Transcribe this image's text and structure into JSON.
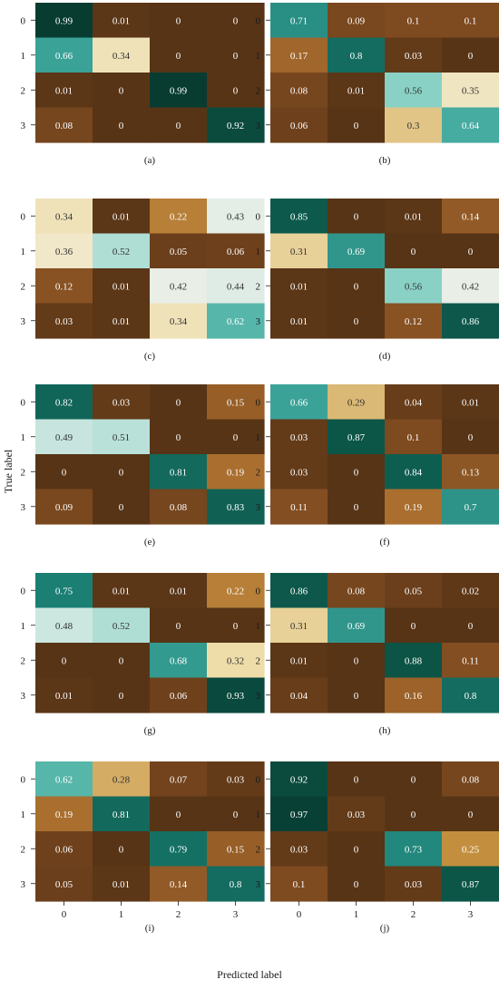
{
  "figure": {
    "ylabel": "True label",
    "xlabel": "Predicted label",
    "row_tick_labels": [
      "0",
      "1",
      "2",
      "3"
    ],
    "col_tick_labels": [
      "0",
      "1",
      "2",
      "3"
    ]
  },
  "colorscale": {
    "stops": [
      {
        "t": 0.0,
        "color": "#573416"
      },
      {
        "t": 0.1,
        "color": "#7e4a20"
      },
      {
        "t": 0.18,
        "color": "#a66a2c"
      },
      {
        "t": 0.26,
        "color": "#c79442"
      },
      {
        "t": 0.32,
        "color": "#eedda9"
      },
      {
        "t": 0.4,
        "color": "#f3f1ea"
      },
      {
        "t": 0.5,
        "color": "#c2e4dd"
      },
      {
        "t": 0.58,
        "color": "#78cbbd"
      },
      {
        "t": 0.65,
        "color": "#3ea69b"
      },
      {
        "t": 0.75,
        "color": "#1b7f74"
      },
      {
        "t": 0.85,
        "color": "#0d5a4c"
      },
      {
        "t": 1.0,
        "color": "#083a2f"
      }
    ]
  },
  "chart_data": [
    {
      "type": "heatmap",
      "label": "(a)",
      "rows": [
        "0",
        "1",
        "2",
        "3"
      ],
      "cols": [
        "0",
        "1",
        "2",
        "3"
      ],
      "values": [
        [
          0.99,
          0.01,
          0,
          0
        ],
        [
          0.66,
          0.34,
          0,
          0
        ],
        [
          0.01,
          0,
          0.99,
          0
        ],
        [
          0.08,
          0,
          0,
          0.92
        ]
      ]
    },
    {
      "type": "heatmap",
      "label": "(b)",
      "rows": [
        "0",
        "1",
        "2",
        "3"
      ],
      "cols": [
        "0",
        "1",
        "2",
        "3"
      ],
      "values": [
        [
          0.71,
          0.09,
          0.1,
          0.1
        ],
        [
          0.17,
          0.8,
          0.03,
          0
        ],
        [
          0.08,
          0.01,
          0.56,
          0.35
        ],
        [
          0.06,
          0,
          0.3,
          0.64
        ]
      ]
    },
    {
      "type": "heatmap",
      "label": "(c)",
      "rows": [
        "0",
        "1",
        "2",
        "3"
      ],
      "cols": [
        "0",
        "1",
        "2",
        "3"
      ],
      "values": [
        [
          0.34,
          0.01,
          0.22,
          0.43
        ],
        [
          0.36,
          0.52,
          0.05,
          0.06
        ],
        [
          0.12,
          0.01,
          0.42,
          0.44
        ],
        [
          0.03,
          0.01,
          0.34,
          0.62
        ]
      ]
    },
    {
      "type": "heatmap",
      "label": "(d)",
      "rows": [
        "0",
        "1",
        "2",
        "3"
      ],
      "cols": [
        "0",
        "1",
        "2",
        "3"
      ],
      "values": [
        [
          0.85,
          0,
          0.01,
          0.14
        ],
        [
          0.31,
          0.69,
          0,
          0
        ],
        [
          0.01,
          0,
          0.56,
          0.42
        ],
        [
          0.01,
          0,
          0.12,
          0.86
        ]
      ]
    },
    {
      "type": "heatmap",
      "label": "(e)",
      "rows": [
        "0",
        "1",
        "2",
        "3"
      ],
      "cols": [
        "0",
        "1",
        "2",
        "3"
      ],
      "values": [
        [
          0.82,
          0.03,
          0,
          0.15
        ],
        [
          0.49,
          0.51,
          0,
          0
        ],
        [
          0,
          0,
          0.81,
          0.19
        ],
        [
          0.09,
          0,
          0.08,
          0.83
        ]
      ]
    },
    {
      "type": "heatmap",
      "label": "(f)",
      "rows": [
        "0",
        "1",
        "2",
        "3"
      ],
      "cols": [
        "0",
        "1",
        "2",
        "3"
      ],
      "values": [
        [
          0.66,
          0.29,
          0.04,
          0.01
        ],
        [
          0.03,
          0.87,
          0.1,
          0
        ],
        [
          0.03,
          0,
          0.84,
          0.13
        ],
        [
          0.11,
          0,
          0.19,
          0.7
        ]
      ]
    },
    {
      "type": "heatmap",
      "label": "(g)",
      "rows": [
        "0",
        "1",
        "2",
        "3"
      ],
      "cols": [
        "0",
        "1",
        "2",
        "3"
      ],
      "values": [
        [
          0.75,
          0.01,
          0.01,
          0.22
        ],
        [
          0.48,
          0.52,
          0,
          0
        ],
        [
          0,
          0,
          0.68,
          0.32
        ],
        [
          0.01,
          0,
          0.06,
          0.93
        ]
      ]
    },
    {
      "type": "heatmap",
      "label": "(h)",
      "rows": [
        "0",
        "1",
        "2",
        "3"
      ],
      "cols": [
        "0",
        "1",
        "2",
        "3"
      ],
      "values": [
        [
          0.86,
          0.08,
          0.05,
          0.02
        ],
        [
          0.31,
          0.69,
          0,
          0
        ],
        [
          0.01,
          0,
          0.88,
          0.11
        ],
        [
          0.04,
          0,
          0.16,
          0.8
        ]
      ]
    },
    {
      "type": "heatmap",
      "label": "(i)",
      "rows": [
        "0",
        "1",
        "2",
        "3"
      ],
      "cols": [
        "0",
        "1",
        "2",
        "3"
      ],
      "values": [
        [
          0.62,
          0.28,
          0.07,
          0.03
        ],
        [
          0.19,
          0.81,
          0,
          0
        ],
        [
          0.06,
          0,
          0.79,
          0.15
        ],
        [
          0.05,
          0.01,
          0.14,
          0.8
        ]
      ]
    },
    {
      "type": "heatmap",
      "label": "(j)",
      "rows": [
        "0",
        "1",
        "2",
        "3"
      ],
      "cols": [
        "0",
        "1",
        "2",
        "3"
      ],
      "values": [
        [
          0.92,
          0,
          0,
          0.08
        ],
        [
          0.97,
          0.03,
          0,
          0
        ],
        [
          0.03,
          0,
          0.73,
          0.25
        ],
        [
          0.1,
          0,
          0.03,
          0.87
        ]
      ]
    }
  ]
}
